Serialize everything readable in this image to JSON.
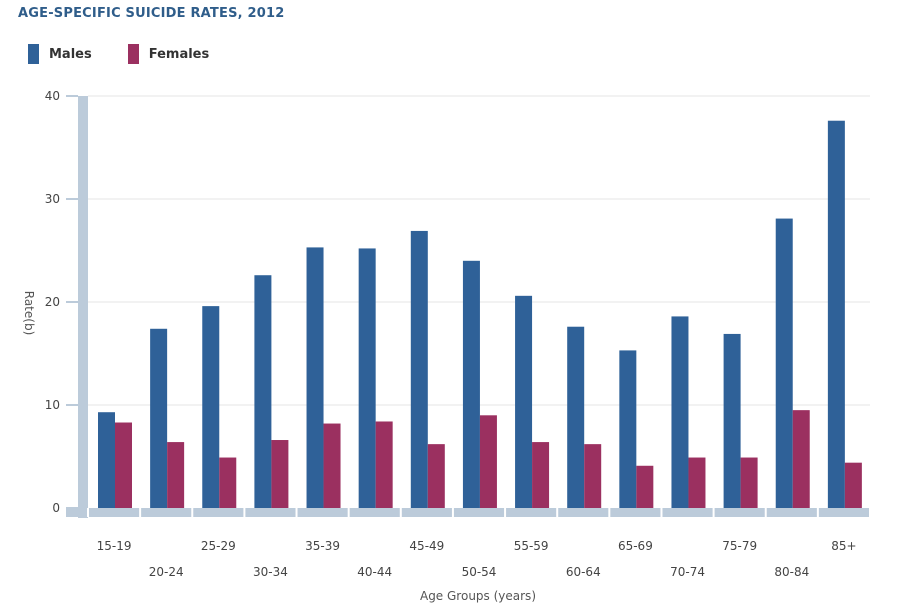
{
  "chart_data": {
    "type": "bar",
    "title": "AGE-SPECIFIC SUICIDE RATES, 2012",
    "xlabel": "Age Groups (years)",
    "ylabel": "Rate(b)",
    "ylim": [
      0,
      40
    ],
    "yticks": [
      0,
      10,
      20,
      30,
      40
    ],
    "grid": true,
    "legend_position": "top-left",
    "categories": [
      "15-19",
      "20-24",
      "25-29",
      "30-34",
      "35-39",
      "40-44",
      "45-49",
      "50-54",
      "55-59",
      "60-64",
      "65-69",
      "70-74",
      "75-79",
      "80-84",
      "85+"
    ],
    "series": [
      {
        "name": "Males",
        "color": "#2f6198",
        "values": [
          9.3,
          17.4,
          19.6,
          22.6,
          25.3,
          25.2,
          26.9,
          24.0,
          20.6,
          17.6,
          15.3,
          18.6,
          16.9,
          28.1,
          37.6
        ]
      },
      {
        "name": "Females",
        "color": "#9b3060",
        "values": [
          8.3,
          6.4,
          4.9,
          6.6,
          8.2,
          8.4,
          6.2,
          9.0,
          6.4,
          6.2,
          4.1,
          4.9,
          4.9,
          9.5,
          4.4
        ]
      }
    ]
  }
}
